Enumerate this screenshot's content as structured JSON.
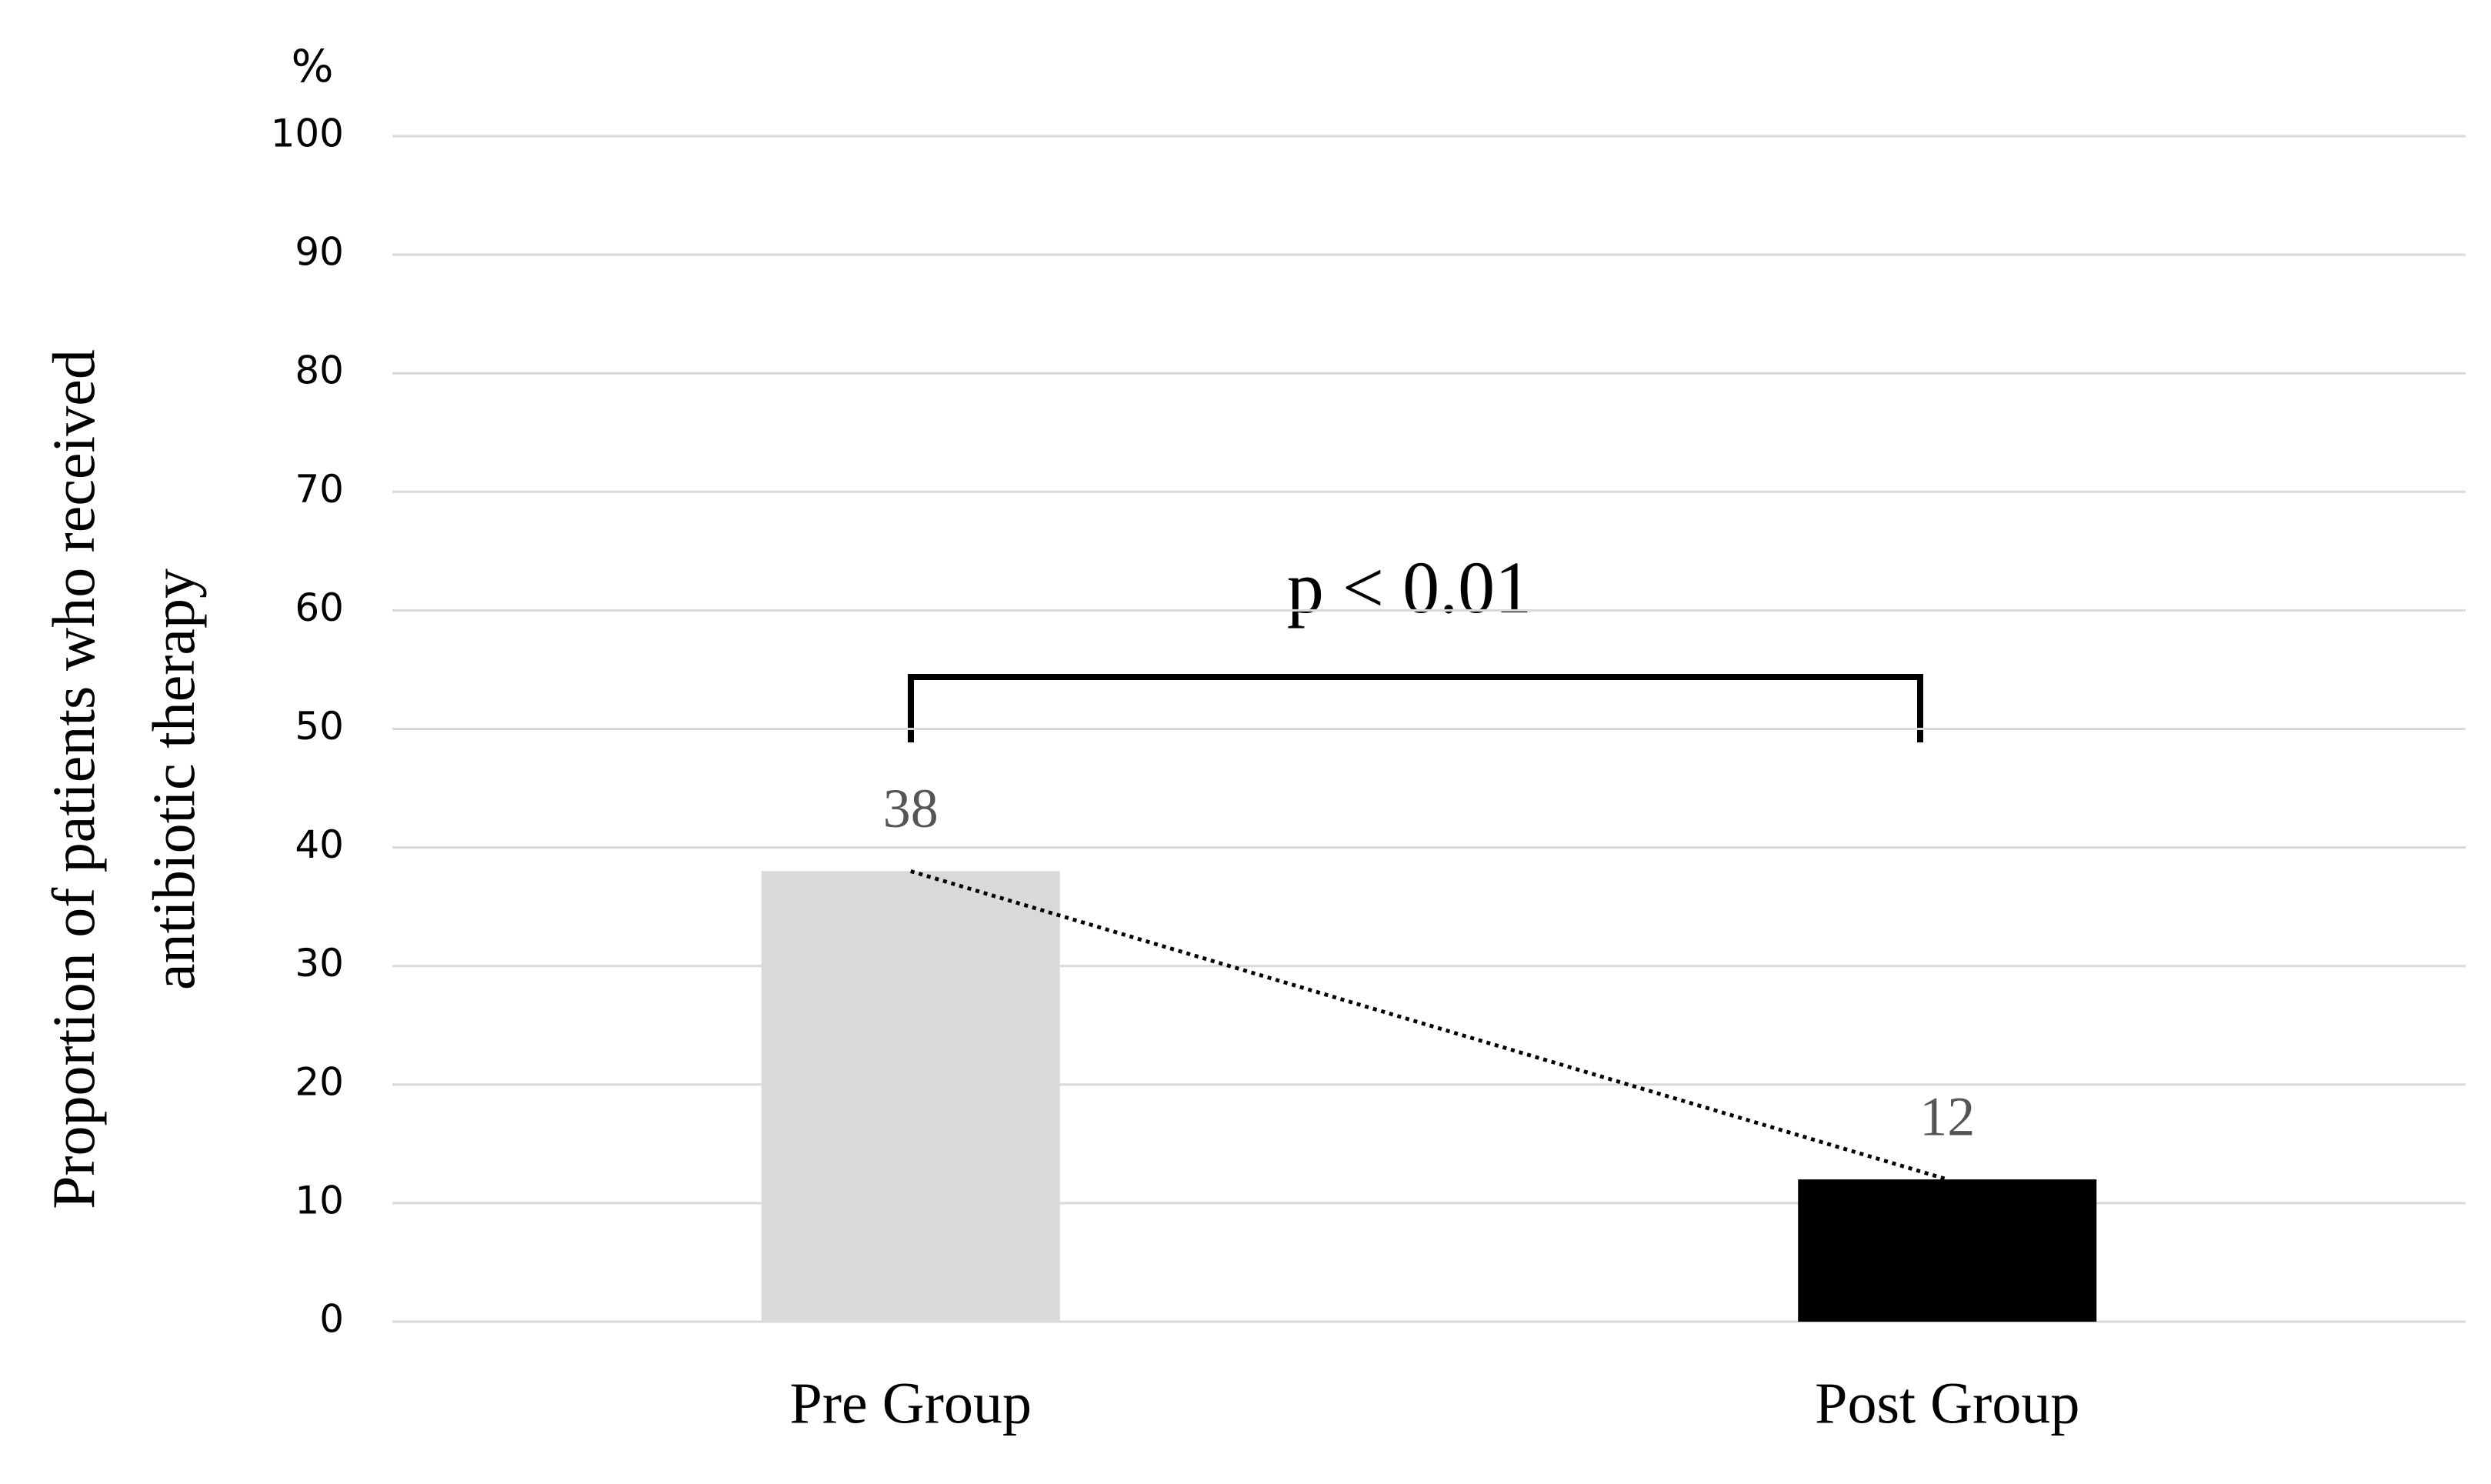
{
  "chart_data": {
    "type": "bar",
    "y_label": [
      "Proportion of patients who received",
      "antibiotic therapy"
    ],
    "y_unit": "%",
    "annotation": "p < 0.01",
    "categories": [
      "Pre Group",
      "Post Group"
    ],
    "values": [
      38,
      12
    ],
    "colors": [
      "#d9d9d9",
      "#000000"
    ],
    "ylim": [
      0,
      100
    ],
    "yticks": [
      0,
      10,
      20,
      30,
      40,
      50,
      60,
      70,
      80,
      90,
      100
    ],
    "grid": true,
    "data_labels": true,
    "trend_line": true
  }
}
